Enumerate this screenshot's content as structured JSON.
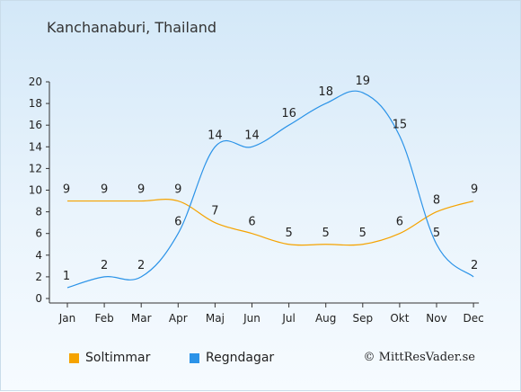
{
  "title": "Kanchanaburi, Thailand",
  "copyright": "© MittResVader.se",
  "colors": {
    "sun": "#f5a300",
    "rain": "#2b93e8"
  },
  "chart_data": {
    "type": "line",
    "title": "Kanchanaburi, Thailand",
    "categories": [
      "Jan",
      "Feb",
      "Mar",
      "Apr",
      "Maj",
      "Jun",
      "Jul",
      "Aug",
      "Sep",
      "Okt",
      "Nov",
      "Dec"
    ],
    "series": [
      {
        "name": "Soltimmar",
        "values": [
          9,
          9,
          9,
          9,
          7,
          6,
          5,
          5,
          5,
          6,
          8,
          9
        ]
      },
      {
        "name": "Regndagar",
        "values": [
          1,
          2,
          2,
          6,
          14,
          14,
          16,
          18,
          19,
          15,
          5,
          2
        ]
      }
    ],
    "yticks": [
      0,
      2,
      4,
      6,
      8,
      10,
      12,
      14,
      16,
      18,
      20
    ],
    "ylim": [
      0,
      20
    ],
    "grid": false,
    "legend": "bottom-left"
  }
}
